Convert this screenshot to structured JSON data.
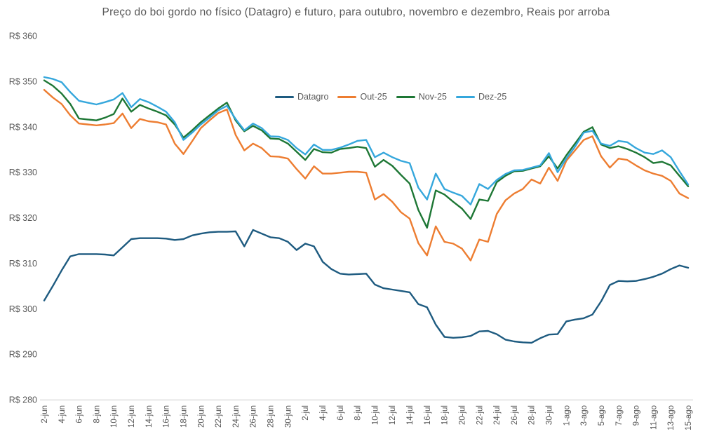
{
  "chart_data": {
    "type": "line",
    "title": "Preço do boi gordo no físico (Datagro) e futuro, para outubro, novembro e dezembro, Reais por arroba",
    "legend_position": "top-center",
    "grid": false,
    "text_color": "#595959",
    "axis_color": "#C9C9C9",
    "points_per_tick": 2,
    "x_tick_labels": [
      "2-jun",
      "4-jun",
      "6-jun",
      "8-jun",
      "10-jun",
      "12-jun",
      "14-jun",
      "16-jun",
      "18-jun",
      "20-jun",
      "22-jun",
      "24-jun",
      "26-jun",
      "28-jun",
      "30-jun",
      "2-jul",
      "4-jul",
      "6-jul",
      "8-jul",
      "10-jul",
      "12-jul",
      "14-jul",
      "16-jul",
      "18-jul",
      "20-jul",
      "22-jul",
      "24-jul",
      "26-jul",
      "28-jul",
      "30-jul",
      "1-ago",
      "3-ago",
      "5-ago",
      "7-ago",
      "9-ago",
      "11-ago",
      "13-ago",
      "15-ago"
    ],
    "y_axis": {
      "min": 280,
      "max": 360,
      "step": 10,
      "currency_prefix": "R$",
      "tick_labels": [
        "R$ 360",
        "R$ 350",
        "R$ 340",
        "R$ 330",
        "R$ 320",
        "R$ 310",
        "R$ 300",
        "R$ 290",
        "R$ 280"
      ]
    },
    "series": [
      {
        "name": "Datagro",
        "color": "#1E5B80",
        "values": [
          301.8,
          305.0,
          308.4,
          311.5,
          312.0,
          312.0,
          312.0,
          311.9,
          311.7,
          313.5,
          315.3,
          315.5,
          315.5,
          315.5,
          315.4,
          315.1,
          315.3,
          316.1,
          316.5,
          316.8,
          316.9,
          316.9,
          317.0,
          313.7,
          317.3,
          316.5,
          315.7,
          315.5,
          314.7,
          312.9,
          314.3,
          313.7,
          310.3,
          308.7,
          307.7,
          307.5,
          307.6,
          307.7,
          305.3,
          304.5,
          304.2,
          303.9,
          303.6,
          301.0,
          300.3,
          296.5,
          293.8,
          293.6,
          293.7,
          294.0,
          295.0,
          295.1,
          294.4,
          293.2,
          292.8,
          292.6,
          292.5,
          293.5,
          294.3,
          294.4,
          297.2,
          297.6,
          297.9,
          298.7,
          301.6,
          305.2,
          306.1,
          306.0,
          306.1,
          306.5,
          307.0,
          307.7,
          308.7,
          309.5,
          309.0
        ]
      },
      {
        "name": "Out-25",
        "color": "#ED7D31",
        "values": [
          348.1,
          346.4,
          345.0,
          342.5,
          340.7,
          340.5,
          340.3,
          340.5,
          340.8,
          342.9,
          339.7,
          341.7,
          341.2,
          341.0,
          340.5,
          336.3,
          334.0,
          336.8,
          339.7,
          341.4,
          343.0,
          343.8,
          338.2,
          334.8,
          336.3,
          335.3,
          333.5,
          333.4,
          333.0,
          330.7,
          328.6,
          331.3,
          329.7,
          329.7,
          329.9,
          330.1,
          330.1,
          329.9,
          324.0,
          325.2,
          323.5,
          321.2,
          319.8,
          314.4,
          311.7,
          318.1,
          314.7,
          314.3,
          313.2,
          310.6,
          315.2,
          314.7,
          320.8,
          323.8,
          325.3,
          326.3,
          328.4,
          327.5,
          331.0,
          328.1,
          332.5,
          334.8,
          337.1,
          337.9,
          333.5,
          331.0,
          333.0,
          332.7,
          331.5,
          330.4,
          329.7,
          329.2,
          328.1,
          325.3,
          324.3
        ]
      },
      {
        "name": "Nov-25",
        "color": "#1E7735",
        "values": [
          350.2,
          349.0,
          347.3,
          345.0,
          341.8,
          341.6,
          341.4,
          342.0,
          342.8,
          346.2,
          343.3,
          344.8,
          344.0,
          343.3,
          342.5,
          340.5,
          337.6,
          339.2,
          341.0,
          342.5,
          344.0,
          345.3,
          341.4,
          339.0,
          340.2,
          339.2,
          337.4,
          337.3,
          336.3,
          334.5,
          332.7,
          335.1,
          334.4,
          334.3,
          335.1,
          335.3,
          335.6,
          335.3,
          331.2,
          332.7,
          331.4,
          329.4,
          327.5,
          321.7,
          317.8,
          326.0,
          325.1,
          323.5,
          322.0,
          319.7,
          324.0,
          323.7,
          327.8,
          329.2,
          330.2,
          330.3,
          330.8,
          331.3,
          333.5,
          330.8,
          333.7,
          336.3,
          338.9,
          339.9,
          336.1,
          335.3,
          335.7,
          335.1,
          334.3,
          333.3,
          332.0,
          332.3,
          331.5,
          329.2,
          326.9
        ]
      },
      {
        "name": "Dez-25",
        "color": "#35A7DC",
        "values": [
          350.9,
          350.5,
          349.8,
          347.6,
          345.7,
          345.3,
          344.9,
          345.4,
          346.0,
          347.4,
          344.3,
          346.1,
          345.4,
          344.4,
          343.3,
          341.0,
          337.1,
          338.7,
          340.5,
          342.0,
          343.6,
          344.6,
          341.7,
          339.2,
          340.7,
          339.7,
          337.9,
          337.8,
          337.1,
          335.3,
          333.9,
          336.1,
          334.9,
          334.9,
          335.4,
          336.1,
          336.9,
          337.1,
          333.3,
          334.3,
          333.3,
          332.5,
          332.0,
          326.6,
          324.0,
          329.7,
          326.3,
          325.5,
          324.8,
          322.9,
          327.4,
          326.3,
          328.3,
          329.6,
          330.4,
          330.5,
          331.0,
          331.5,
          334.2,
          330.0,
          333.0,
          335.6,
          338.7,
          339.1,
          336.3,
          335.8,
          336.9,
          336.6,
          335.3,
          334.3,
          334.0,
          334.8,
          333.3,
          330.2,
          327.3
        ]
      }
    ]
  }
}
